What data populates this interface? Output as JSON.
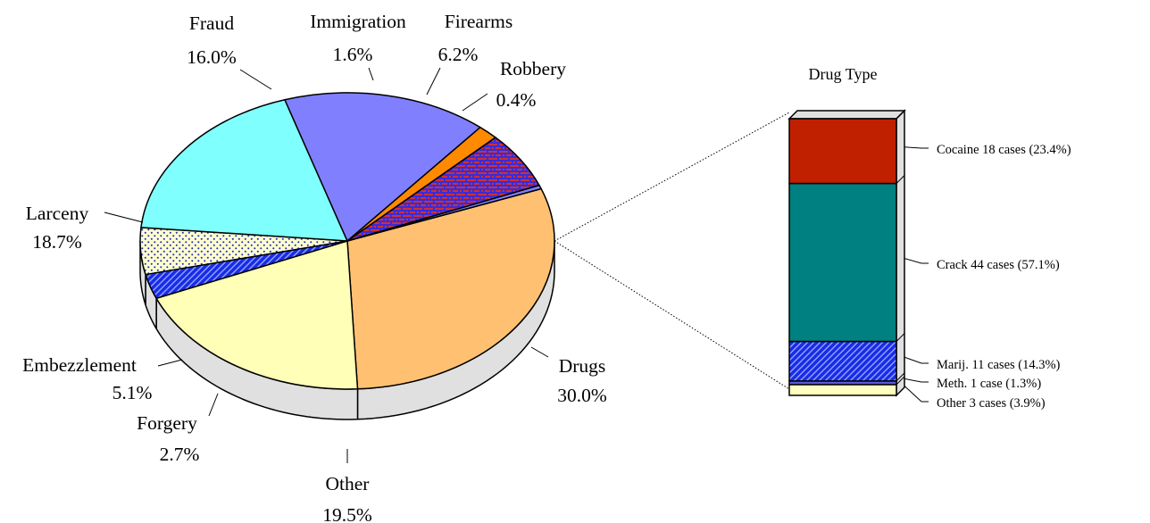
{
  "chart_data": [
    {
      "type": "pie",
      "title": "",
      "slices": [
        {
          "label": "Drugs",
          "value": 30.0,
          "value_label": "30.0%",
          "color": "#FFC171",
          "pattern": "none"
        },
        {
          "label": "Other",
          "value": 19.5,
          "value_label": "19.5%",
          "color": "#FFFFB7",
          "pattern": "none"
        },
        {
          "label": "Forgery",
          "value": 2.7,
          "value_label": "2.7%",
          "color": "#1A2BE6",
          "pattern": "hatch"
        },
        {
          "label": "Embezzlement",
          "value": 5.1,
          "value_label": "5.1%",
          "color": "#FFFFD0",
          "pattern": "dots"
        },
        {
          "label": "Larceny",
          "value": 18.7,
          "value_label": "18.7%",
          "color": "#80FFFF",
          "pattern": "none"
        },
        {
          "label": "Fraud",
          "value": 16.0,
          "value_label": "16.0%",
          "color": "#8080FF",
          "pattern": "none"
        },
        {
          "label": "Immigration",
          "value": 1.6,
          "value_label": "1.6%",
          "color": "#FF8A00",
          "pattern": "none"
        },
        {
          "label": "Firearms",
          "value": 6.2,
          "value_label": "6.2%",
          "color": "#3A2BD8",
          "pattern": "bricks"
        },
        {
          "label": "Robbery",
          "value": 0.4,
          "value_label": "0.4%",
          "color": "#8080FF",
          "pattern": "none"
        }
      ]
    },
    {
      "type": "bar",
      "stacked": true,
      "title": "Drug Type",
      "segments": [
        {
          "label": "Other 3 cases (3.9%)",
          "value": 3.9,
          "color": "#FFFFC0",
          "pattern": "none"
        },
        {
          "label": "Meth. 1 case (1.3%)",
          "value": 1.3,
          "color": "#5A5AD8",
          "pattern": "none"
        },
        {
          "label": "Marij. 11 cases (14.3%)",
          "value": 14.3,
          "color": "#1A2BE6",
          "pattern": "hatch"
        },
        {
          "label": "Crack 44 cases (57.1%)",
          "value": 57.1,
          "color": "#008080",
          "pattern": "none"
        },
        {
          "label": "Cocaine 18 cases (23.4%)",
          "value": 23.4,
          "color": "#C02000",
          "pattern": "none"
        }
      ]
    }
  ]
}
